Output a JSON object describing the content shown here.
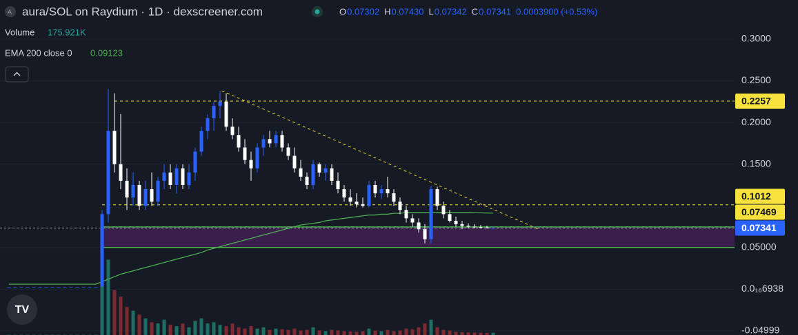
{
  "header": {
    "title": "aura/SOL on Raydium · 1D · dexscreener.com",
    "ohlc": [
      {
        "key": "O",
        "value": "0.07302"
      },
      {
        "key": "H",
        "value": "0.07430"
      },
      {
        "key": "L",
        "value": "0.07342"
      },
      {
        "key": "C",
        "value": "0.07341"
      }
    ],
    "change": "0.0003900 (+0.53%)",
    "volume_label": "Volume",
    "volume_value": "175.921K",
    "ema_label": "EMA 200 close 0",
    "ema_value": "0.09123"
  },
  "chart_data": {
    "type": "candlestick",
    "up_color": "#2962ff",
    "down_color": "#ffffff",
    "ema_color": "#4caf50",
    "volume_up_color": "#1f6e63",
    "volume_down_color": "#7d2a33",
    "ylim": [
      -0.055,
      0.347
    ],
    "yticks": [
      {
        "value": 0.3,
        "label": "0.3000"
      },
      {
        "value": 0.25,
        "label": "0.2500"
      },
      {
        "value": 0.2,
        "label": "0.2000"
      },
      {
        "value": 0.15,
        "label": "0.1500"
      },
      {
        "value": 0.05,
        "label": "0.05000"
      },
      {
        "value": 6.938e-18,
        "label": "0.0₁₆6938"
      },
      -0.04999
    ],
    "vlim": [
      0,
      7000000
    ],
    "open": [
      0.002,
      0.002,
      0.002,
      0.002,
      0.002,
      0.002,
      0.002,
      0.002,
      0.002,
      0.002,
      0.002,
      0.002,
      0.002,
      0.002,
      0.002,
      0.003,
      0.09,
      0.19,
      0.15,
      0.13,
      0.11,
      0.125,
      0.1,
      0.12,
      0.105,
      0.13,
      0.14,
      0.125,
      0.145,
      0.125,
      0.14,
      0.165,
      0.19,
      0.205,
      0.22,
      0.225,
      0.195,
      0.185,
      0.17,
      0.155,
      0.145,
      0.17,
      0.18,
      0.175,
      0.185,
      0.17,
      0.16,
      0.145,
      0.135,
      0.125,
      0.15,
      0.14,
      0.145,
      0.13,
      0.12,
      0.11,
      0.105,
      0.102,
      0.1,
      0.125,
      0.115,
      0.12,
      0.115,
      0.105,
      0.095,
      0.085,
      0.08,
      0.072,
      0.06,
      0.12,
      0.1,
      0.09,
      0.082,
      0.078,
      0.076,
      0.075,
      0.0745,
      0.074,
      0.07302
    ],
    "high": [
      0.002,
      0.002,
      0.002,
      0.002,
      0.002,
      0.002,
      0.002,
      0.002,
      0.002,
      0.002,
      0.002,
      0.002,
      0.002,
      0.002,
      0.002,
      0.095,
      0.24,
      0.235,
      0.21,
      0.145,
      0.14,
      0.13,
      0.13,
      0.14,
      0.135,
      0.15,
      0.15,
      0.15,
      0.15,
      0.15,
      0.17,
      0.195,
      0.21,
      0.225,
      0.238,
      0.235,
      0.205,
      0.195,
      0.18,
      0.165,
      0.175,
      0.185,
      0.19,
      0.19,
      0.19,
      0.175,
      0.17,
      0.155,
      0.14,
      0.155,
      0.152,
      0.15,
      0.15,
      0.14,
      0.125,
      0.12,
      0.115,
      0.11,
      0.13,
      0.13,
      0.125,
      0.135,
      0.12,
      0.11,
      0.1,
      0.09,
      0.085,
      0.078,
      0.124,
      0.123,
      0.105,
      0.095,
      0.087,
      0.082,
      0.079,
      0.078,
      0.077,
      0.076,
      0.0743
    ],
    "low": [
      0.002,
      0.002,
      0.002,
      0.002,
      0.002,
      0.002,
      0.002,
      0.002,
      0.002,
      0.002,
      0.002,
      0.002,
      0.002,
      0.002,
      0.002,
      0.003,
      0.08,
      0.14,
      0.12,
      0.095,
      0.1,
      0.095,
      0.095,
      0.1,
      0.1,
      0.12,
      0.12,
      0.115,
      0.12,
      0.12,
      0.13,
      0.16,
      0.18,
      0.19,
      0.205,
      0.19,
      0.18,
      0.165,
      0.15,
      0.13,
      0.14,
      0.16,
      0.17,
      0.17,
      0.165,
      0.155,
      0.14,
      0.13,
      0.12,
      0.12,
      0.135,
      0.13,
      0.125,
      0.115,
      0.105,
      0.1,
      0.098,
      0.098,
      0.098,
      0.11,
      0.108,
      0.11,
      0.1,
      0.09,
      0.08,
      0.075,
      0.068,
      0.055,
      0.055,
      0.095,
      0.085,
      0.08,
      0.075,
      0.072,
      0.073,
      0.073,
      0.073,
      0.073,
      0.0734
    ],
    "close": [
      0.002,
      0.002,
      0.002,
      0.002,
      0.002,
      0.002,
      0.002,
      0.002,
      0.002,
      0.002,
      0.002,
      0.002,
      0.002,
      0.002,
      0.002,
      0.09,
      0.19,
      0.15,
      0.13,
      0.11,
      0.125,
      0.1,
      0.12,
      0.105,
      0.13,
      0.14,
      0.125,
      0.145,
      0.125,
      0.14,
      0.165,
      0.19,
      0.205,
      0.22,
      0.225,
      0.195,
      0.185,
      0.17,
      0.155,
      0.145,
      0.17,
      0.18,
      0.175,
      0.185,
      0.17,
      0.16,
      0.145,
      0.135,
      0.125,
      0.15,
      0.14,
      0.145,
      0.13,
      0.12,
      0.11,
      0.105,
      0.102,
      0.1,
      0.125,
      0.115,
      0.12,
      0.115,
      0.105,
      0.095,
      0.085,
      0.08,
      0.072,
      0.06,
      0.12,
      0.1,
      0.09,
      0.082,
      0.078,
      0.076,
      0.075,
      0.0745,
      0.074,
      0.0735,
      0.07341
    ],
    "volume": [
      20000,
      20000,
      20000,
      20000,
      20000,
      20000,
      20000,
      20000,
      20000,
      20000,
      20000,
      20000,
      20000,
      20000,
      20000,
      6500000,
      5900000,
      3500000,
      3000000,
      2200000,
      1900000,
      1600000,
      1300000,
      1000000,
      900000,
      1200000,
      800000,
      700000,
      900000,
      600000,
      1100000,
      1300000,
      900000,
      1000000,
      800000,
      700000,
      900000,
      600000,
      500000,
      700000,
      500000,
      600000,
      400000,
      500000,
      450000,
      400000,
      500000,
      350000,
      400000,
      600000,
      350000,
      300000,
      400000,
      350000,
      300000,
      280000,
      250000,
      300000,
      500000,
      350000,
      300000,
      400000,
      300000,
      350000,
      500000,
      450000,
      600000,
      900000,
      1200000,
      600000,
      400000,
      350000,
      250000,
      220000,
      200000,
      190000,
      180000,
      170000,
      175921
    ],
    "ema": [
      0.006,
      0.006,
      0.006,
      0.006,
      0.006,
      0.006,
      0.006,
      0.006,
      0.006,
      0.006,
      0.006,
      0.006,
      0.006,
      0.006,
      0.006,
      0.009,
      0.012,
      0.015,
      0.018,
      0.02,
      0.022,
      0.024,
      0.026,
      0.028,
      0.03,
      0.032,
      0.034,
      0.036,
      0.038,
      0.04,
      0.042,
      0.044,
      0.047,
      0.049,
      0.051,
      0.053,
      0.055,
      0.057,
      0.059,
      0.061,
      0.063,
      0.065,
      0.067,
      0.069,
      0.071,
      0.073,
      0.075,
      0.077,
      0.078,
      0.079,
      0.08,
      0.082,
      0.083,
      0.084,
      0.085,
      0.086,
      0.087,
      0.088,
      0.089,
      0.089,
      0.09,
      0.09,
      0.091,
      0.091,
      0.092,
      0.092,
      0.092,
      0.092,
      0.092,
      0.092,
      0.092,
      0.092,
      0.092,
      0.092,
      0.092,
      0.0918,
      0.0916,
      0.0914,
      0.09123
    ],
    "levels": [
      {
        "value": 0.2257,
        "start": 17,
        "color": "#f7e13d",
        "style": "dashed"
      },
      {
        "value": 0.1012,
        "start": 15,
        "color": "#f7e13d",
        "style": "dashed"
      },
      {
        "value": 0.07469,
        "start": 15,
        "color": "#4caf50",
        "style": "solid"
      }
    ],
    "zone": {
      "low": 0.05,
      "high": 0.07469,
      "start": 15,
      "fill": "#3a1f4d",
      "line_color": "#4caf50"
    },
    "last_price": {
      "value": 0.07341,
      "color": "#2962ff"
    },
    "trendline": {
      "start": [
        34.3,
        0.238
      ],
      "end": [
        85.2,
        0.0723
      ],
      "color": "#f7e13d"
    }
  }
}
